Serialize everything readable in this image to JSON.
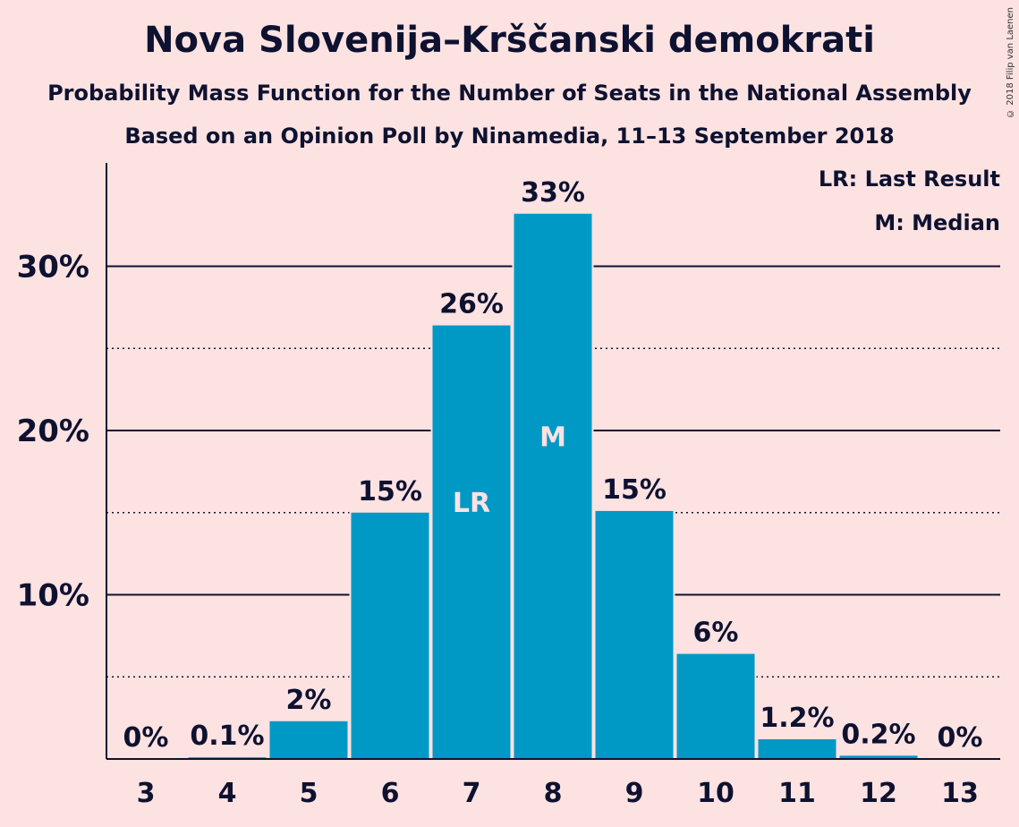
{
  "chart_data": {
    "type": "bar",
    "title": "Nova Slovenija–Krščanski demokrati",
    "subtitle": "Probability Mass Function for the Number of Seats in the National Assembly",
    "subtitle2": "Based on an Opinion Poll by Ninamedia, 11–13 September 2018",
    "copyright": "© 2018 Filip van Laenen",
    "categories": [
      "3",
      "4",
      "5",
      "6",
      "7",
      "8",
      "9",
      "10",
      "11",
      "12",
      "13"
    ],
    "values": [
      0,
      0.1,
      2.3,
      15.0,
      26.4,
      33.2,
      15.1,
      6.4,
      1.2,
      0.2,
      0
    ],
    "value_labels": [
      "0%",
      "0.1%",
      "2%",
      "15%",
      "26%",
      "33%",
      "15%",
      "6%",
      "1.2%",
      "0.2%",
      "0%"
    ],
    "inner_labels": {
      "7": "LR",
      "8": "M"
    },
    "yticks": [
      10,
      20,
      30
    ],
    "ytick_labels": [
      "10%",
      "20%",
      "30%"
    ],
    "minor_yticks": [
      5,
      15,
      25
    ],
    "ylim": [
      0,
      36
    ],
    "legend": [
      "LR: Last Result",
      "M: Median"
    ],
    "legend_position": "top-right",
    "bar_color": "#0099c6",
    "background": "#fde2e2"
  }
}
